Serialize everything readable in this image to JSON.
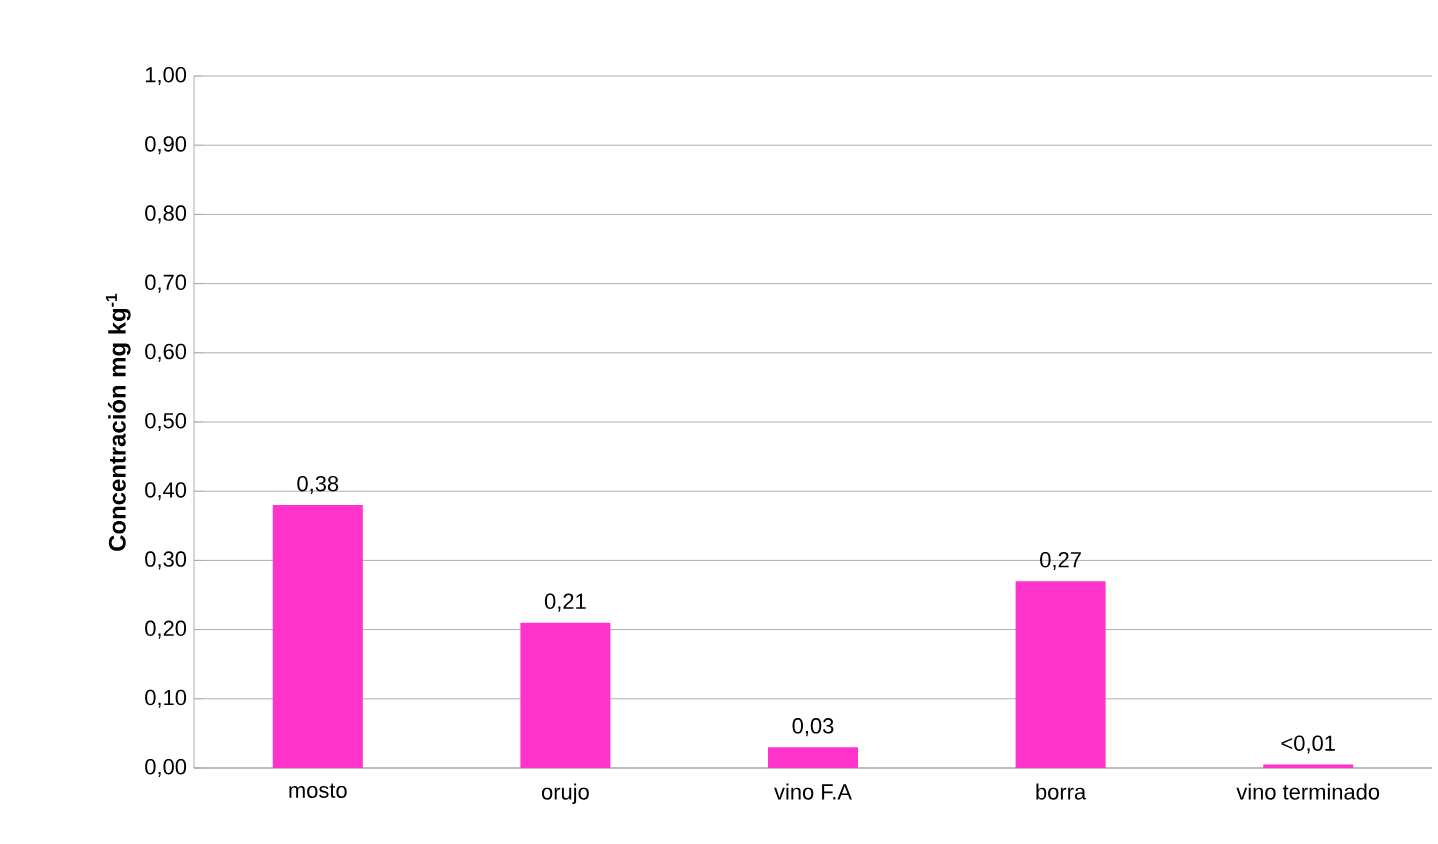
{
  "chart_data": {
    "type": "bar",
    "ylabel": "Concentración  mg kg$^{-1}$",
    "categories": [
      "mosto",
      "orujo",
      "vino F.A",
      "borra",
      "vino terminado"
    ],
    "values": [
      0.38,
      0.21,
      0.03,
      0.27,
      0.005
    ],
    "value_labels": [
      "0,38",
      "0,21",
      "0,03",
      "0,27",
      "<0,01"
    ],
    "color": "#ff33cc",
    "ylim": [
      0,
      1
    ],
    "yticks": [
      {
        "value": 0,
        "label": "0,00"
      },
      {
        "value": 0.1,
        "label": "0,10"
      },
      {
        "value": 0.2,
        "label": "0,20"
      },
      {
        "value": 0.3,
        "label": "0,30"
      },
      {
        "value": 0.4,
        "label": "0,40"
      },
      {
        "value": 0.5,
        "label": "0,50"
      },
      {
        "value": 0.6,
        "label": "0,60"
      },
      {
        "value": 0.7,
        "label": "0,70"
      },
      {
        "value": 0.8,
        "label": "0,80"
      },
      {
        "value": 0.9,
        "label": "0,90"
      },
      {
        "value": 1,
        "label": "1,00"
      }
    ],
    "grid": "y"
  }
}
